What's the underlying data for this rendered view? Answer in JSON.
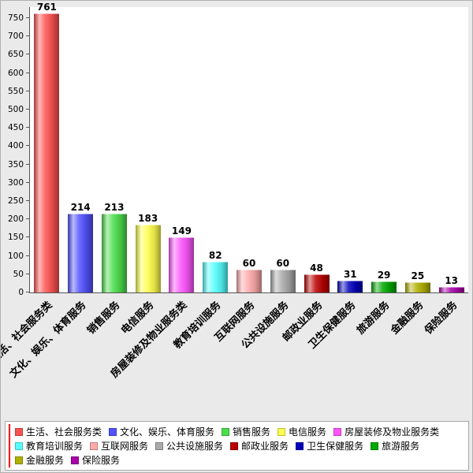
{
  "chart_data": {
    "type": "bar",
    "title": "",
    "xlabel": "",
    "ylabel": "",
    "categories": [
      "生活、社会服务类",
      "文化、娱乐、体育服务",
      "销售服务",
      "电信服务",
      "房屋装修及物业服务类",
      "教育培训服务",
      "互联网服务",
      "公共设施服务",
      "邮政业服务",
      "卫生保健服务",
      "旅游服务",
      "金融服务",
      "保险服务"
    ],
    "values": [
      761,
      214,
      213,
      183,
      149,
      82,
      60,
      60,
      48,
      31,
      29,
      25,
      13
    ],
    "colors": [
      "#ff5252",
      "#5252ff",
      "#4ade4a",
      "#ffff4d",
      "#ff55ff",
      "#55ffff",
      "#ffaaaa",
      "#aaaaaa",
      "#bb0000",
      "#0000bb",
      "#00a800",
      "#b0b000",
      "#aa00aa"
    ],
    "ylim": [
      0,
      780
    ],
    "yticks": [
      0,
      50,
      100,
      150,
      200,
      250,
      300,
      350,
      400,
      450,
      500,
      550,
      600,
      650,
      700,
      750
    ],
    "grid": false,
    "legend_position": "bottom",
    "legend_accent_color": "#ff0000",
    "bar_value_labels_shown": true,
    "x_label_rotation_deg": -45
  }
}
